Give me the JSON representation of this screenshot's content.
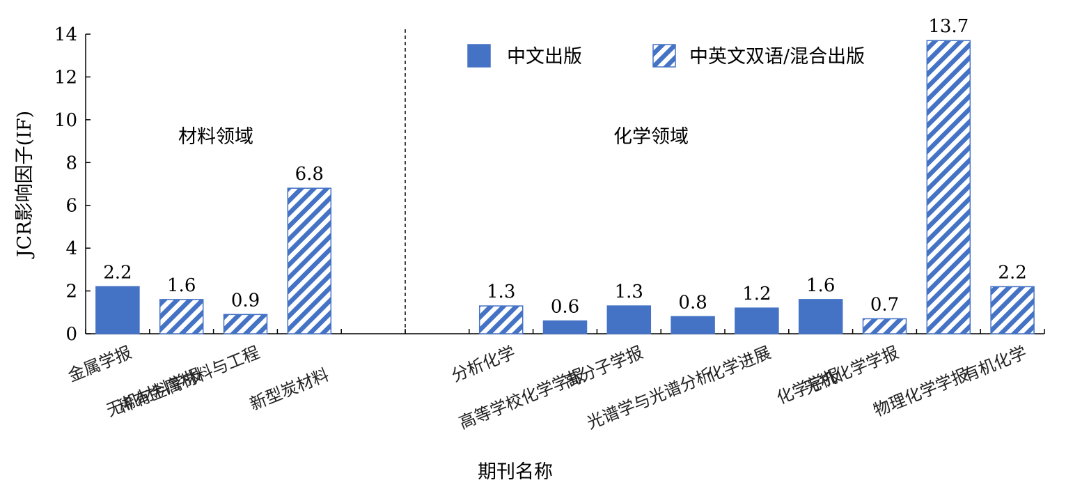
{
  "chart_data": {
    "type": "bar",
    "xlabel": "期刊名称",
    "ylabel": "JCR影响因子(IF)",
    "ylim": [
      0,
      14
    ],
    "yticks": [
      0,
      2,
      4,
      6,
      8,
      10,
      12,
      14
    ],
    "grid": false,
    "legend_position": "top-right",
    "series": [
      {
        "name": "中文出版",
        "pattern": "solid",
        "color": "#4472C4"
      },
      {
        "name": "中英文双语/混合出版",
        "pattern": "diagonal-hatch",
        "color": "#4472C4"
      }
    ],
    "regions": [
      {
        "label": "材料领域"
      },
      {
        "label": "化学领域"
      }
    ],
    "categories": [
      {
        "label": "金属学报",
        "value": 2.2,
        "series": 0,
        "region": 0,
        "show_label": true
      },
      {
        "label": "无机材料学报",
        "value": 1.6,
        "series": 1,
        "region": 0,
        "show_label": true
      },
      {
        "label": "稀有金属材料与工程",
        "value": 0.9,
        "series": 1,
        "region": 0,
        "show_label": true
      },
      {
        "label": "新型炭材料",
        "value": 6.8,
        "series": 1,
        "region": 0,
        "show_label": true
      },
      {
        "label": "分析化学",
        "value": 1.3,
        "series": 1,
        "region": 1,
        "show_label": true
      },
      {
        "label": "高等学校化学学报",
        "value": 0.6,
        "series": 0,
        "region": 1,
        "show_label": true
      },
      {
        "label": "高分子学报",
        "value": 1.3,
        "series": 0,
        "region": 1,
        "show_label": true
      },
      {
        "label": "光谱学与光谱分析",
        "value": 0.8,
        "series": 0,
        "region": 1,
        "show_label": true
      },
      {
        "label": "化学进展",
        "value": 1.2,
        "series": 0,
        "region": 1,
        "show_label": true
      },
      {
        "label": "化学学报",
        "value": 1.6,
        "series": 0,
        "region": 1,
        "show_label": true
      },
      {
        "label": "无机化学学报",
        "value": 0.7,
        "series": 1,
        "region": 1,
        "show_label": true
      },
      {
        "label": "物理化学学报",
        "value": 13.7,
        "series": 1,
        "region": 1,
        "show_label": true
      },
      {
        "label": "有机化学",
        "value": 2.2,
        "series": 1,
        "region": 1,
        "show_label": true
      }
    ]
  }
}
